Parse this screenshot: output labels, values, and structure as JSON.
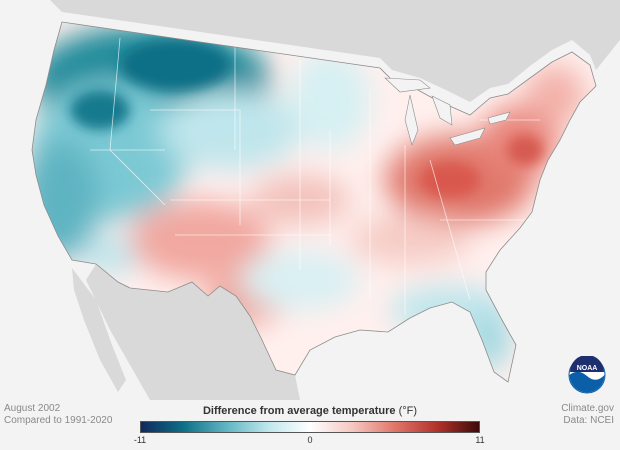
{
  "caption": {
    "period": "August 2002",
    "baseline": "Compared to 1991-2020"
  },
  "credits": {
    "site": "Climate.gov",
    "data": "Data: NCEI"
  },
  "logo_text": "NOAA",
  "legend": {
    "title": "Difference from average temperature",
    "unit": "(°F)",
    "min_label": "-11",
    "mid_label": "0",
    "max_label": "11",
    "colors": [
      "#0f2a5e",
      "#0e6f86",
      "#5fb4c2",
      "#bfe6ec",
      "#ffffff",
      "#f5c7c2",
      "#e0776b",
      "#b3322b",
      "#3d0a0a"
    ]
  },
  "colors": {
    "land_outside": "#d9d9d9",
    "ocean": "#f3f3f3",
    "borders": "#8c8c8c",
    "noaa_blue": "#0a5fa8"
  }
}
